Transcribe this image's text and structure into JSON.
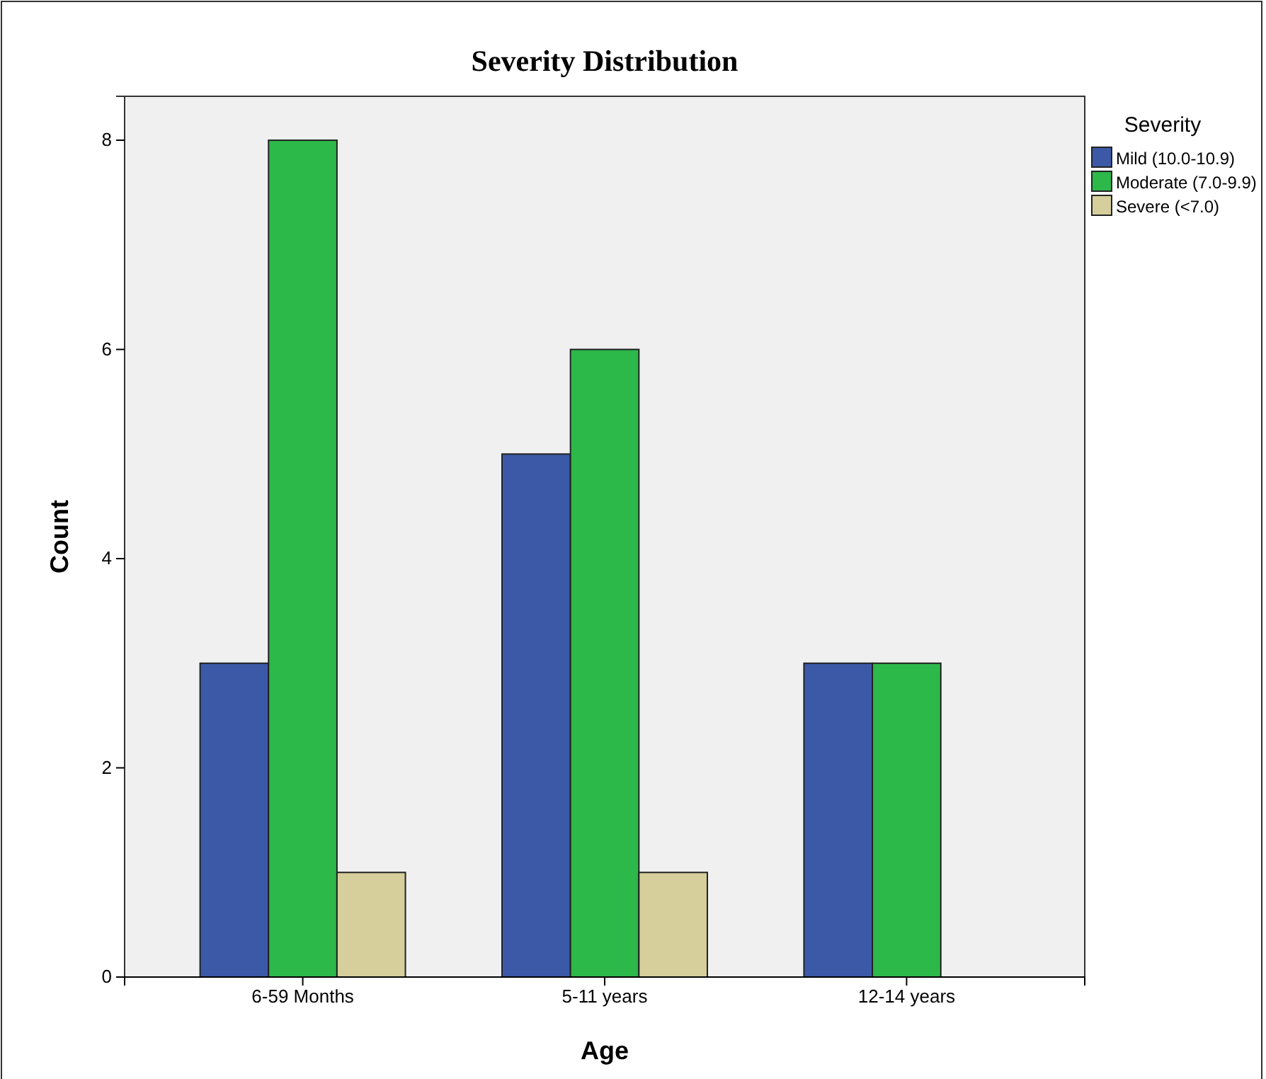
{
  "chart_data": {
    "type": "bar",
    "title": "Severity Distribution",
    "xlabel": "Age",
    "ylabel": "Count",
    "legend_title": "Severity",
    "categories": [
      "6-59 Months",
      "5-11 years",
      "12-14 years"
    ],
    "series": [
      {
        "name": "Mild (10.0-10.9)",
        "color": "#3c59a8",
        "values": [
          3,
          5,
          3
        ]
      },
      {
        "name": "Moderate (7.0-9.9)",
        "color": "#2db84a",
        "values": [
          8,
          6,
          3
        ]
      },
      {
        "name": "Severe (<7.0)",
        "color": "#d6cf9c",
        "values": [
          1,
          1,
          null
        ]
      }
    ],
    "ylim": [
      0,
      8.42
    ],
    "yticks": [
      0,
      2,
      4,
      6,
      8
    ],
    "grid": false,
    "legend": "top right"
  }
}
